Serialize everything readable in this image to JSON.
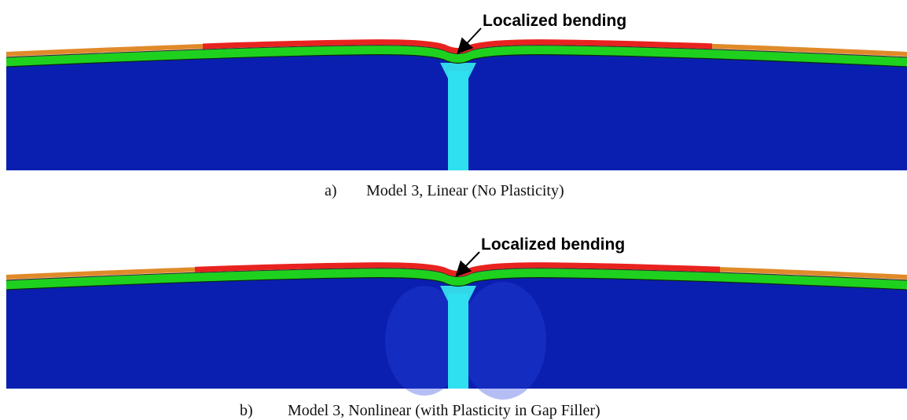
{
  "panels": [
    {
      "annotation": "Localized bending",
      "caption_label": "a)",
      "caption": "Model 3, Linear (No Plasticity)"
    },
    {
      "annotation": "Localized bending",
      "caption_label": "b)",
      "caption": "Model 3, Nonlinear (with Plasticity in Gap Filler)"
    }
  ]
}
